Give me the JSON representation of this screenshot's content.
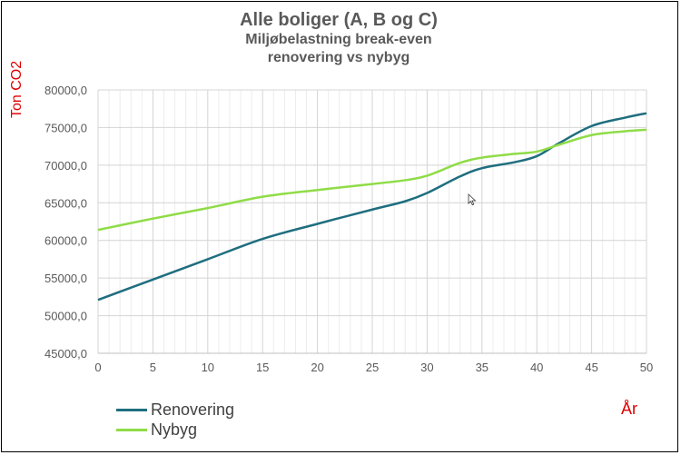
{
  "chart_data": {
    "type": "line",
    "title": "Alle boliger (A, B og C)",
    "subtitle_line1": "Miljøbelastning break-even",
    "subtitle_line2": "renovering vs nybyg",
    "ylabel": "Ton CO2",
    "xlabel": "År",
    "xlim": [
      0,
      50
    ],
    "ylim": [
      45000,
      80000
    ],
    "x_ticks": [
      0,
      5,
      10,
      15,
      20,
      25,
      30,
      35,
      40,
      45,
      50
    ],
    "y_ticks": [
      "45000,0",
      "50000,0",
      "55000,0",
      "60000,0",
      "65000,0",
      "70000,0",
      "75000,0",
      "80000,0"
    ],
    "y_tick_values": [
      45000,
      50000,
      55000,
      60000,
      65000,
      70000,
      75000,
      80000
    ],
    "grid": true,
    "legend_position": "bottom-left",
    "x": [
      0,
      5,
      10,
      15,
      20,
      25,
      28,
      30,
      33,
      35,
      38,
      40,
      42,
      45,
      48,
      50
    ],
    "series": [
      {
        "name": "Renovering",
        "color": "#1f6e7f",
        "values": [
          52100,
          54800,
          57500,
          60200,
          62200,
          64100,
          65200,
          66300,
          68500,
          69600,
          70400,
          71200,
          72900,
          75200,
          76300,
          76900
        ]
      },
      {
        "name": "Nybyg",
        "color": "#8fdc47",
        "values": [
          61400,
          62900,
          64300,
          65800,
          66700,
          67500,
          68000,
          68600,
          70300,
          71000,
          71500,
          71800,
          72700,
          74000,
          74500,
          74700
        ]
      }
    ]
  }
}
